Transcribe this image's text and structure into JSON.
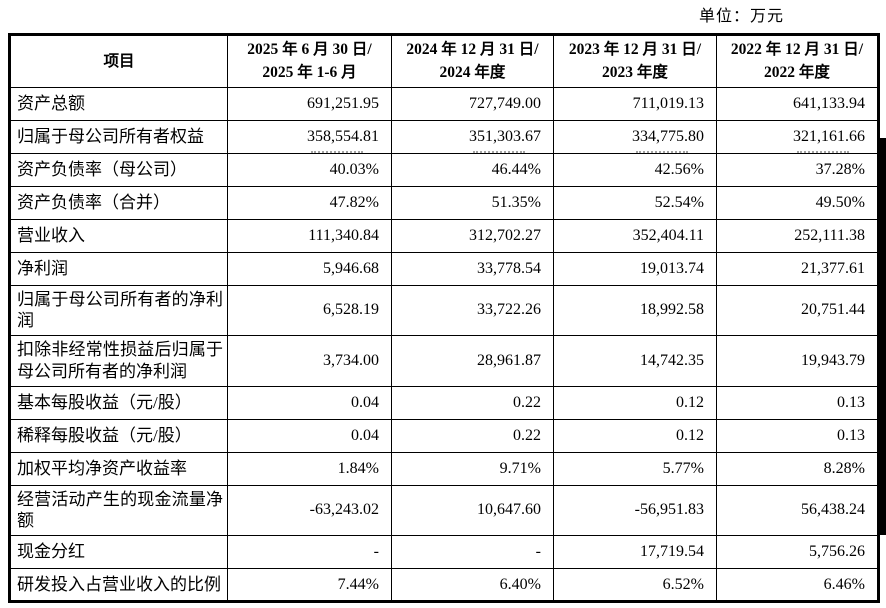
{
  "units_label": "单位：万元",
  "colors": {
    "text": "#000000",
    "background": "#ffffff",
    "border": "#000000"
  },
  "table": {
    "header": {
      "item_col": "项目",
      "period_cols": [
        {
          "line1": "2025 年 6 月 30 日/",
          "line2": "2025 年 1-6 月"
        },
        {
          "line1": "2024 年 12 月 31 日/",
          "line2": "2024 年度"
        },
        {
          "line1": "2023 年 12 月 31 日/",
          "line2": "2023 年度"
        },
        {
          "line1": "2022 年 12 月 31 日/",
          "line2": "2022 年度"
        }
      ]
    },
    "rows": [
      {
        "label": "资产总额",
        "values": [
          "691,251.95",
          "727,749.00",
          "711,019.13",
          "641,133.94"
        ]
      },
      {
        "label": "归属于母公司所有者权益",
        "values": [
          "358,554.81",
          "351,303.67",
          "334,775.80",
          "321,161.66"
        ]
      },
      {
        "label": "资产负债率（母公司）",
        "values": [
          "40.03%",
          "46.44%",
          "42.56%",
          "37.28%"
        ]
      },
      {
        "label": "资产负债率（合并）",
        "values": [
          "47.82%",
          "51.35%",
          "52.54%",
          "49.50%"
        ]
      },
      {
        "label": "营业收入",
        "values": [
          "111,340.84",
          "312,702.27",
          "352,404.11",
          "252,111.38"
        ]
      },
      {
        "label": "净利润",
        "values": [
          "5,946.68",
          "33,778.54",
          "19,013.74",
          "21,377.61"
        ]
      },
      {
        "label": "归属于母公司所有者的净利润",
        "values": [
          "6,528.19",
          "33,722.26",
          "18,992.58",
          "20,751.44"
        ]
      },
      {
        "label": "扣除非经常性损益后归属于母公司所有者的净利润",
        "values": [
          "3,734.00",
          "28,961.87",
          "14,742.35",
          "19,943.79"
        ]
      },
      {
        "label": "基本每股收益（元/股）",
        "values": [
          "0.04",
          "0.22",
          "0.12",
          "0.13"
        ]
      },
      {
        "label": "稀释每股收益（元/股）",
        "values": [
          "0.04",
          "0.22",
          "0.12",
          "0.13"
        ]
      },
      {
        "label": "加权平均净资产收益率",
        "values": [
          "1.84%",
          "9.71%",
          "5.77%",
          "8.28%"
        ]
      },
      {
        "label": "经营活动产生的现金流量净额",
        "values": [
          "-63,243.02",
          "10,647.60",
          "-56,951.83",
          "56,438.24"
        ]
      },
      {
        "label": "现金分红",
        "values": [
          "-",
          "-",
          "17,719.54",
          "5,756.26"
        ]
      },
      {
        "label": "研发投入占营业收入的比例",
        "values": [
          "7.44%",
          "6.40%",
          "6.52%",
          "6.46%"
        ]
      }
    ]
  }
}
